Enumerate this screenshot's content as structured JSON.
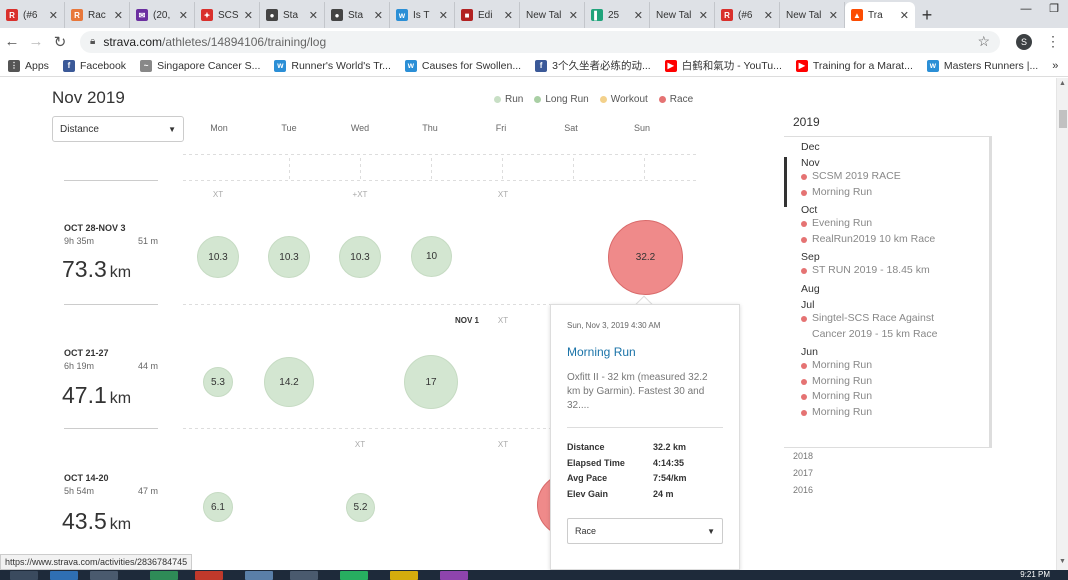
{
  "tabs": [
    {
      "label": "(#6",
      "color": "#d9302c",
      "glyph": "R"
    },
    {
      "label": "Rac",
      "color": "#e8773a",
      "glyph": "R"
    },
    {
      "label": "(20,",
      "color": "#6b2fa0",
      "glyph": "✉"
    },
    {
      "label": "SCS",
      "color": "#d9302c",
      "glyph": "✦"
    },
    {
      "label": "Sta",
      "color": "#444444",
      "glyph": "●"
    },
    {
      "label": "Sta",
      "color": "#444444",
      "glyph": "●"
    },
    {
      "label": "Is T",
      "color": "#2b8fd6",
      "glyph": "w"
    },
    {
      "label": "Edi",
      "color": "#b22222",
      "glyph": "■"
    },
    {
      "label": "New Tal",
      "color": "",
      "glyph": ""
    },
    {
      "label": "25 ",
      "color": "#1fa37a",
      "glyph": "▌"
    },
    {
      "label": "New Tal",
      "color": "",
      "glyph": ""
    },
    {
      "label": "(#6",
      "color": "#d9302c",
      "glyph": "R"
    },
    {
      "label": "New Tal",
      "color": "",
      "glyph": ""
    },
    {
      "label": "Tra",
      "color": "#fc4c02",
      "glyph": "▲"
    }
  ],
  "window": {
    "minimize": "—",
    "restore": "❐"
  },
  "address": {
    "host": "strava.com",
    "path": "/athletes/14894106/training/log",
    "profile_initial": "S"
  },
  "bookmarks": [
    {
      "label": "Apps",
      "color": "#555555",
      "glyph": "⋮"
    },
    {
      "label": "Facebook",
      "color": "#3b5998",
      "glyph": "f"
    },
    {
      "label": "Singapore Cancer S...",
      "color": "#888888",
      "glyph": "~"
    },
    {
      "label": "Runner's World's Tr...",
      "color": "#2b8fd6",
      "glyph": "w"
    },
    {
      "label": "Causes for Swollen...",
      "color": "#2b8fd6",
      "glyph": "w"
    },
    {
      "label": "3个久坐者必练的动...",
      "color": "#3b5998",
      "glyph": "f"
    },
    {
      "label": "白鹤和氣功 - YouTu...",
      "color": "#ff0000",
      "glyph": "▶"
    },
    {
      "label": "Training for a Marat...",
      "color": "#ff0000",
      "glyph": "▶"
    },
    {
      "label": "Masters Runners |...",
      "color": "#2b8fd6",
      "glyph": "w"
    }
  ],
  "bookmarks_more": "»",
  "log": {
    "month_title": "Nov 2019",
    "legend": [
      {
        "label": "Run",
        "color": "#c8dfc5"
      },
      {
        "label": "Long Run",
        "color": "#a9cfa4"
      },
      {
        "label": "Workout",
        "color": "#f3d18b"
      },
      {
        "label": "Race",
        "color": "#e57373"
      }
    ],
    "metric_select": "Distance",
    "days": [
      "Mon",
      "Tue",
      "Wed",
      "Thu",
      "Fri",
      "Sat",
      "Sun"
    ],
    "xt_labels": {
      "row0": [
        "XT",
        "+XT",
        "XT"
      ],
      "row1": [
        "XT"
      ],
      "row2": [
        "XT",
        "XT"
      ]
    },
    "nov1": "NOV 1",
    "weeks": [
      {
        "range": "OCT 28-NOV 3",
        "time": "9h 35m",
        "minutes": "51 m",
        "distance": "73.3",
        "unit": "km",
        "bubbles": [
          "10.3",
          "10.3",
          "10.3",
          "10",
          "32.2"
        ]
      },
      {
        "range": "OCT 21-27",
        "time": "6h 19m",
        "minutes": "44 m",
        "distance": "47.1",
        "unit": "km",
        "bubbles": [
          "5.3",
          "14.2",
          "17"
        ]
      },
      {
        "range": "OCT 14-20",
        "time": "5h 54m",
        "minutes": "47 m",
        "distance": "43.5",
        "unit": "km",
        "bubbles": [
          "6.1",
          "5.2"
        ]
      }
    ]
  },
  "popup": {
    "date": "Sun, Nov 3, 2019 4:30 AM",
    "title": "Morning Run",
    "description": "Oxfitt II - 32 km (measured 32.2 km by Garmin). Fastest 30 and 32....",
    "stats": [
      {
        "label": "Distance",
        "value": "32.2 km"
      },
      {
        "label": "Elapsed Time",
        "value": "4:14:35"
      },
      {
        "label": "Avg Pace",
        "value": "7:54/km"
      },
      {
        "label": "Elev Gain",
        "value": "24 m"
      }
    ],
    "type_select": "Race"
  },
  "sidebar": {
    "year": "2019",
    "months": [
      {
        "name": "Dec",
        "acts": []
      },
      {
        "name": "Nov",
        "acts": [
          "SCSM 2019 RACE",
          "Morning Run"
        ]
      },
      {
        "name": "Oct",
        "acts": [
          "Evening Run",
          "RealRun2019 10 km Race"
        ]
      },
      {
        "name": "Sep",
        "acts": [
          "ST RUN 2019 - 18.45 km"
        ]
      },
      {
        "name": "Aug",
        "acts": []
      },
      {
        "name": "Jul",
        "acts": [
          "Singtel-SCS Race Against",
          "Cancer 2019 - 15 km Race"
        ]
      },
      {
        "name": "Jun",
        "acts": [
          "Morning Run",
          "Morning Run",
          "Morning Run",
          "Morning Run"
        ]
      }
    ],
    "other_years": [
      "2018",
      "2017",
      "2016"
    ]
  },
  "status_url": "https://www.strava.com/activities/2836784745",
  "clock": "9:21 PM"
}
